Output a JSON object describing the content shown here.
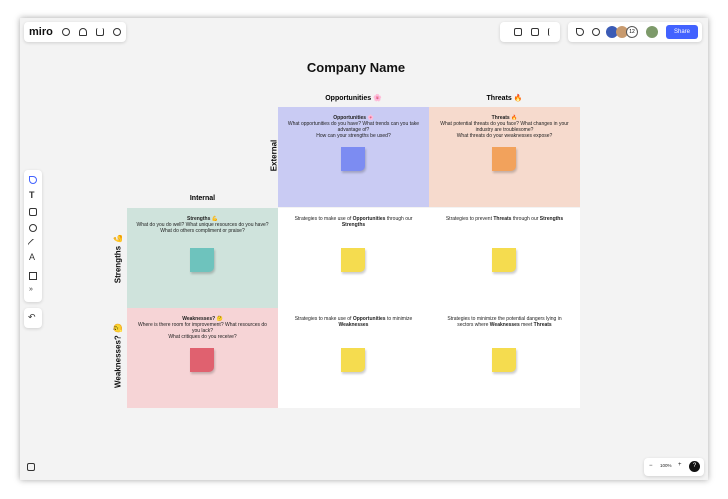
{
  "toolbar": {
    "logo": "miro",
    "users_count": "12",
    "share": "Share"
  },
  "zoom": {
    "level": "100%",
    "minus": "−",
    "plus": "+",
    "help": "?"
  },
  "board": {
    "title": "Company Name",
    "external_label": "External",
    "internal_label": "Internal",
    "columns": [
      "Opportunities 🌸",
      "Threats 🔥"
    ],
    "rows": [
      "Strengths 💪",
      "Weaknesses? 🤔"
    ],
    "external_cells": [
      {
        "title": "Opportunities 🌸",
        "lines": [
          "What opportunities do you have? What trends can you take advantage of?",
          "How can your strengths be used?"
        ]
      },
      {
        "title": "Threats 🔥",
        "lines": [
          "What potential threats do you face? What changes in your industry are troublesome?",
          "What threats do your weaknesses expose?"
        ]
      }
    ],
    "internal_cells": [
      {
        "title": "Strengths 💪",
        "lines": [
          "What do you do well? What unique resources do you have? What do others compliment or praise?"
        ]
      },
      {
        "title": "Weaknesses? 🤔",
        "lines": [
          "Where is there room for improvement? What resources do you lack?",
          "What critiques do you receive?"
        ]
      }
    ],
    "strategies": [
      [
        [
          {
            "text": "Strategies to make use of "
          },
          {
            "text": "Opportunities",
            "bold": true
          },
          {
            "text": " through our "
          },
          {
            "text": "Strengths",
            "bold": true
          }
        ],
        [
          {
            "text": "Strategies to prevent "
          },
          {
            "text": "Threats",
            "bold": true
          },
          {
            "text": " through our "
          },
          {
            "text": "Strengths",
            "bold": true
          }
        ]
      ],
      [
        [
          {
            "text": "Strategies to make use of "
          },
          {
            "text": "Opportunities",
            "bold": true
          },
          {
            "text": " to minimize "
          },
          {
            "text": "Weaknesses",
            "bold": true
          }
        ],
        [
          {
            "text": "Strategies to minimize the potential dangers lying in sectors where "
          },
          {
            "text": "Weaknesses",
            "bold": true
          },
          {
            "text": " meet "
          },
          {
            "text": "Threats",
            "bold": true
          }
        ]
      ]
    ]
  }
}
